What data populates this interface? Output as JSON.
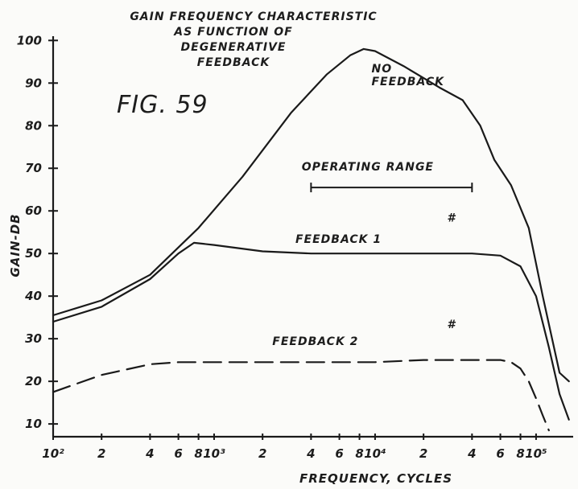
{
  "chart_data": {
    "type": "line",
    "title": [
      "GAIN FREQUENCY CHARACTERISTIC",
      "AS FUNCTION OF",
      "DEGENERATIVE",
      "FEEDBACK"
    ],
    "figure_label": "FIG. 59",
    "xlabel": "FREQUENCY, CYCLES",
    "ylabel": "GAIN-DB",
    "x_scale": "log",
    "xlim": [
      100,
      170000
    ],
    "ylim": [
      7,
      101
    ],
    "grid": false,
    "y_ticks": [
      10,
      20,
      30,
      40,
      50,
      60,
      70,
      80,
      90,
      100
    ],
    "x_ticks": [
      {
        "value": 100,
        "label": "10²"
      },
      {
        "value": 200,
        "label": "2"
      },
      {
        "value": 400,
        "label": "4"
      },
      {
        "value": 600,
        "label": "6"
      },
      {
        "value": 800,
        "label": "8"
      },
      {
        "value": 1000,
        "label": "10³"
      },
      {
        "value": 2000,
        "label": "2"
      },
      {
        "value": 4000,
        "label": "4"
      },
      {
        "value": 6000,
        "label": "6"
      },
      {
        "value": 8000,
        "label": "8"
      },
      {
        "value": 10000,
        "label": "10⁴"
      },
      {
        "value": 20000,
        "label": "2"
      },
      {
        "value": 40000,
        "label": "4"
      },
      {
        "value": 60000,
        "label": "6"
      },
      {
        "value": 80000,
        "label": "8"
      },
      {
        "value": 100000,
        "label": "10⁵"
      }
    ],
    "series": [
      {
        "name": "NO FEEDBACK",
        "style": "solid",
        "x": [
          100,
          200,
          400,
          800,
          1500,
          3000,
          5000,
          7000,
          8500,
          10000,
          15000,
          25000,
          35000,
          45000,
          55000,
          70000,
          90000,
          110000,
          140000,
          160000
        ],
        "y": [
          35.5,
          39,
          45,
          56,
          68,
          83,
          92,
          96.5,
          98,
          97.5,
          94,
          89,
          86,
          80,
          72,
          66,
          56,
          40,
          22,
          20
        ]
      },
      {
        "name": "FEEDBACK #1",
        "style": "solid",
        "x": [
          100,
          200,
          400,
          600,
          750,
          1000,
          2000,
          4000,
          10000,
          20000,
          40000,
          60000,
          80000,
          100000,
          120000,
          140000,
          160000
        ],
        "y": [
          34,
          37.5,
          44,
          50,
          52.5,
          52,
          50.5,
          50,
          50,
          50,
          50,
          49.5,
          47,
          40,
          28,
          17,
          11
        ]
      },
      {
        "name": "FEEDBACK #2",
        "style": "dashed",
        "x": [
          100,
          200,
          400,
          600,
          1000,
          2000,
          5000,
          10000,
          20000,
          40000,
          60000,
          70000,
          80000,
          90000,
          100000,
          110000,
          120000
        ],
        "y": [
          17.5,
          21.5,
          24,
          24.5,
          24.5,
          24.5,
          24.5,
          24.5,
          25,
          25,
          25,
          24.5,
          23,
          20,
          16,
          12,
          8.5
        ]
      }
    ],
    "annotations": [
      {
        "text": "NO",
        "x": 9500,
        "y": 92.5
      },
      {
        "text": "FEEDBACK",
        "x": 9500,
        "y": 89.5
      },
      {
        "text": "OPERATING RANGE",
        "x": 3500,
        "y": 69.5
      },
      {
        "text": "FEEDBACK 1",
        "x": 3200,
        "y": 52.5
      },
      {
        "text": "#",
        "x": 28000,
        "y": 57.5
      },
      {
        "text": "FEEDBACK 2",
        "x": 2300,
        "y": 28.5
      },
      {
        "text": "#",
        "x": 28000,
        "y": 32.5
      }
    ],
    "operating_range": {
      "x": [
        4000,
        40000
      ],
      "y": 65.5
    }
  }
}
